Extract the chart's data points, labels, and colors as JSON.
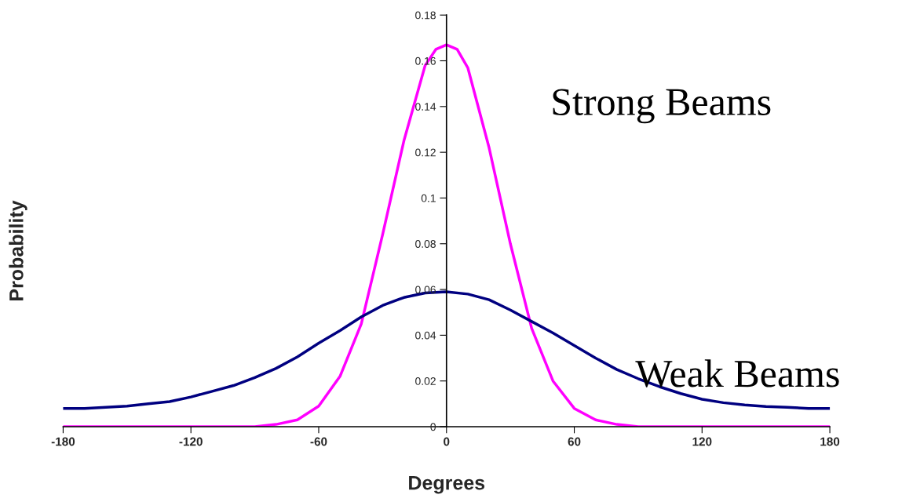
{
  "chart_data": {
    "type": "line",
    "xlabel": "Degrees",
    "ylabel": "Probability",
    "xlim": [
      -180,
      180
    ],
    "xticks": [
      -180,
      -120,
      -60,
      0,
      60,
      120,
      180
    ],
    "ylim": [
      0,
      0.18
    ],
    "yticks": [
      0,
      0.02,
      0.04,
      0.06,
      0.08,
      0.1,
      0.12,
      0.14,
      0.16,
      0.18
    ],
    "grid": false,
    "legend": false,
    "marker": "none",
    "line_style": "solid",
    "series": [
      {
        "name": "Strong Beams",
        "color": "#ff00ff",
        "x": [
          -180,
          -170,
          -160,
          -150,
          -140,
          -130,
          -120,
          -110,
          -100,
          -90,
          -80,
          -70,
          -60,
          -50,
          -40,
          -30,
          -20,
          -10,
          -5,
          0,
          5,
          10,
          20,
          30,
          40,
          50,
          60,
          70,
          80,
          90,
          100,
          110,
          120,
          130,
          140,
          150,
          160,
          170,
          180
        ],
        "values": [
          0,
          0,
          0,
          0,
          0,
          0,
          0,
          0,
          0,
          0,
          0.001,
          0.003,
          0.009,
          0.022,
          0.045,
          0.084,
          0.125,
          0.158,
          0.165,
          0.167,
          0.165,
          0.157,
          0.122,
          0.08,
          0.043,
          0.02,
          0.008,
          0.003,
          0.001,
          0,
          0,
          0,
          0,
          0,
          0,
          0,
          0,
          0,
          0
        ]
      },
      {
        "name": "Weak Beams",
        "color": "#000080",
        "x": [
          -180,
          -170,
          -160,
          -150,
          -140,
          -130,
          -120,
          -110,
          -100,
          -90,
          -80,
          -70,
          -60,
          -50,
          -40,
          -30,
          -20,
          -10,
          0,
          10,
          20,
          30,
          40,
          50,
          60,
          70,
          80,
          90,
          100,
          110,
          120,
          130,
          140,
          150,
          160,
          170,
          180
        ],
        "values": [
          0.008,
          0.008,
          0.0085,
          0.009,
          0.01,
          0.011,
          0.013,
          0.0155,
          0.018,
          0.0215,
          0.0255,
          0.0305,
          0.0365,
          0.042,
          0.048,
          0.053,
          0.0565,
          0.0585,
          0.059,
          0.058,
          0.0555,
          0.051,
          0.046,
          0.041,
          0.0355,
          0.03,
          0.025,
          0.021,
          0.0175,
          0.0145,
          0.012,
          0.0105,
          0.0095,
          0.0088,
          0.0085,
          0.008,
          0.008
        ]
      }
    ]
  }
}
